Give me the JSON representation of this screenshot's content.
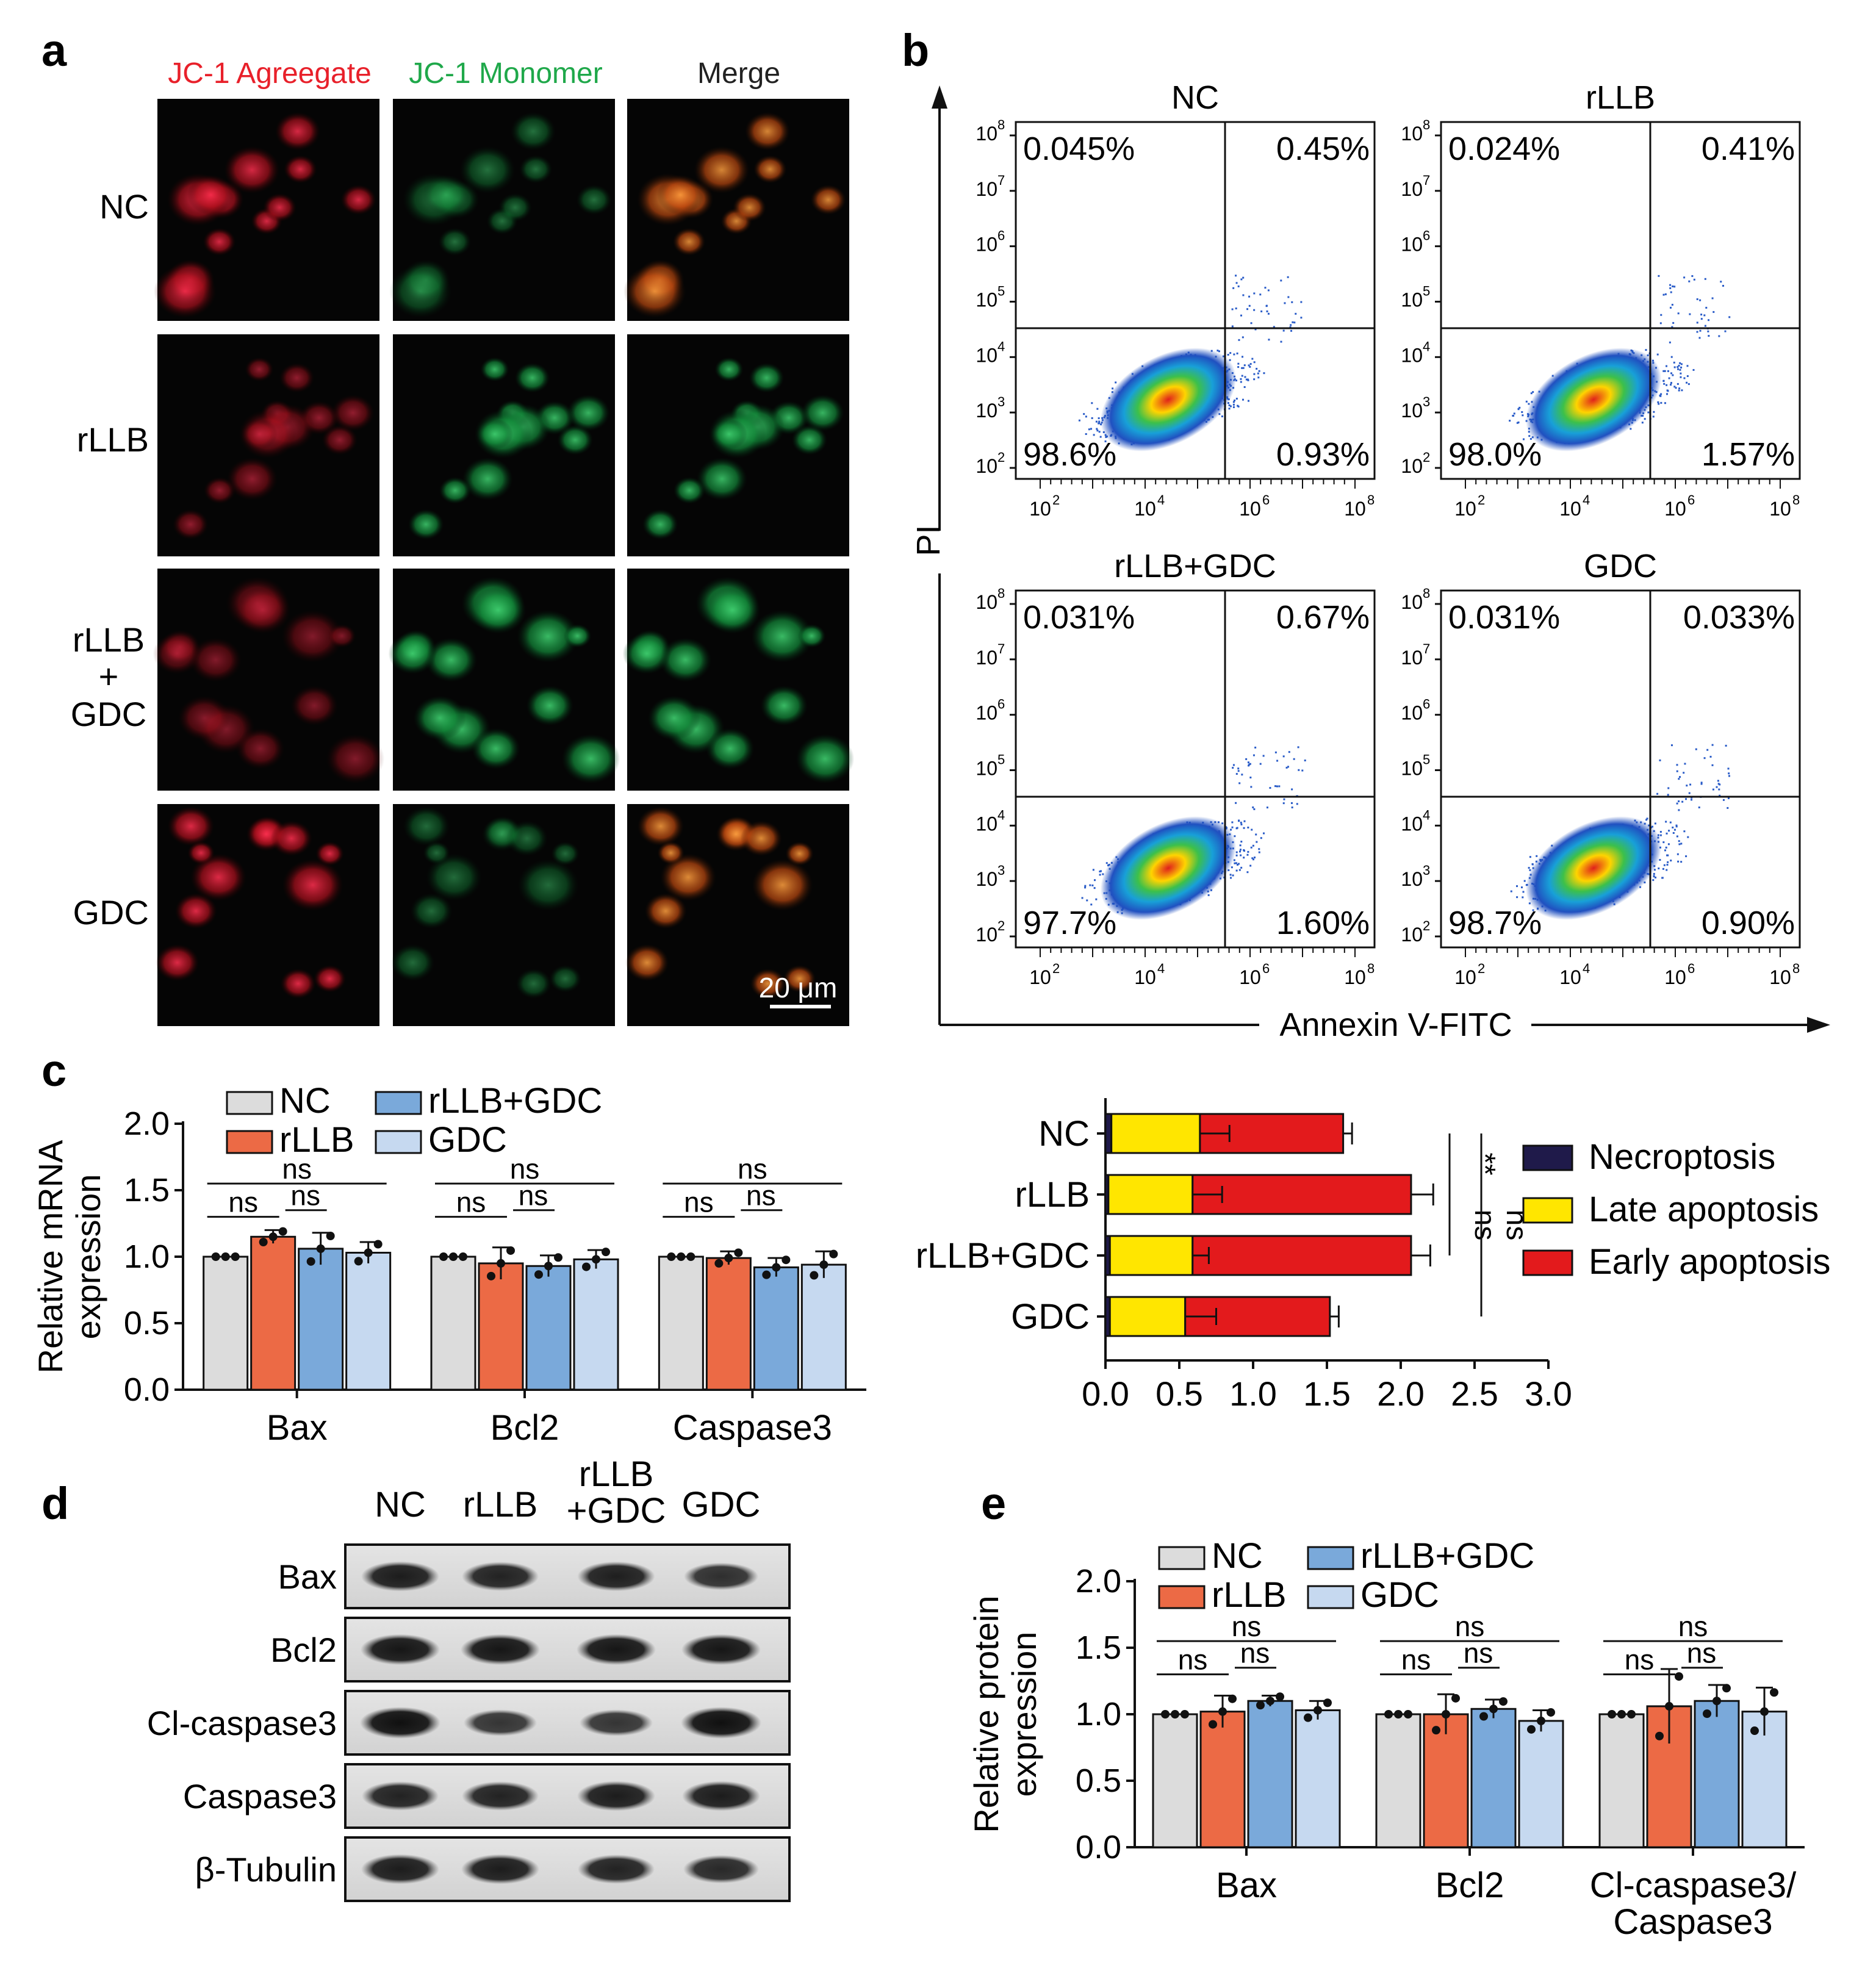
{
  "panels": {
    "a": {
      "label": "a",
      "columns": [
        "JC-1 Agreegate",
        "JC-1 Monomer",
        "Merge"
      ],
      "column_colors": [
        "#e8202a",
        "#1fa84a",
        "#222222"
      ],
      "rows": [
        {
          "label": "NC",
          "red_level": 0.8,
          "green_level": 0.3
        },
        {
          "label": "rLLB",
          "red_level": 0.35,
          "green_level": 0.85
        },
        {
          "label_lines": [
            "rLLB",
            "+",
            "GDC"
          ],
          "red_level": 0.25,
          "green_level": 0.9
        },
        {
          "label": "GDC",
          "red_level": 0.85,
          "green_level": 0.25
        }
      ],
      "scale_bar": "20 μm"
    },
    "b": {
      "label": "b",
      "y_axis_label": "PI",
      "x_axis_label": "Annexin V-FITC",
      "tick_labels": [
        "10",
        "10",
        "10",
        "10"
      ],
      "tick_exponents": [
        "2",
        "4",
        "6",
        "8"
      ],
      "y_tick_exponents": [
        "2",
        "3",
        "4",
        "5",
        "6",
        "7",
        "8"
      ],
      "plots": [
        {
          "title": "NC",
          "ul": "0.045%",
          "ur": "0.45%",
          "ll": "98.6%",
          "lr": "0.93%"
        },
        {
          "title": "rLLB",
          "ul": "0.024%",
          "ur": "0.41%",
          "ll": "98.0%",
          "lr": "1.57%"
        },
        {
          "title": "rLLB+GDC",
          "ul": "0.031%",
          "ur": "0.67%",
          "ll": "97.7%",
          "lr": "1.60%"
        },
        {
          "title": "GDC",
          "ul": "0.031%",
          "ur": "0.033%",
          "ll": "98.7%",
          "lr": "0.90%"
        }
      ]
    },
    "c": {
      "label": "c"
    },
    "d": {
      "label": "d",
      "lanes": [
        "NC",
        "rLLB",
        "rLLB\n+GDC",
        "GDC"
      ],
      "lane_lines": [
        [
          "NC"
        ],
        [
          "rLLB"
        ],
        [
          "rLLB",
          "+GDC"
        ],
        [
          "GDC"
        ]
      ],
      "blots": [
        {
          "name": "Bax",
          "intensity": [
            0.9,
            0.85,
            0.88,
            0.75
          ]
        },
        {
          "name": "Bcl2",
          "intensity": [
            0.95,
            0.95,
            0.95,
            0.95
          ]
        },
        {
          "name": "Cl-caspase3",
          "intensity": [
            1.0,
            0.7,
            0.7,
            1.0
          ]
        },
        {
          "name": "Caspase3",
          "intensity": [
            0.85,
            0.85,
            0.9,
            0.9
          ]
        },
        {
          "name": "β-Tubulin",
          "intensity": [
            0.9,
            0.9,
            0.85,
            0.8
          ]
        }
      ]
    },
    "e": {
      "label": "e"
    }
  },
  "colors": {
    "NC": "#dcdcdc",
    "rLLB": "#ec6a45",
    "rLLB+GDC": "#7aa9da",
    "GDC": "#c6d9f0",
    "early": "#e31a1c",
    "late": "#ffe600",
    "necroptosis": "#1f1a4a"
  },
  "chart_data": [
    {
      "id": "c-left",
      "type": "bar",
      "ylabel_lines": [
        "Relative mRNA",
        "expression"
      ],
      "ylim": [
        0,
        2.0
      ],
      "yticks": [
        "0.0",
        "0.5",
        "1.0",
        "1.5",
        "2.0"
      ],
      "categories": [
        "Bax",
        "Bcl2",
        "Caspase3"
      ],
      "legend": [
        "NC",
        "rLLB",
        "rLLB+GDC",
        "GDC"
      ],
      "series": [
        {
          "name": "NC",
          "values": [
            1.0,
            1.0,
            1.0
          ],
          "err": [
            0.0,
            0.0,
            0.0
          ]
        },
        {
          "name": "rLLB",
          "values": [
            1.15,
            0.95,
            0.99
          ],
          "err": [
            0.05,
            0.12,
            0.05
          ]
        },
        {
          "name": "rLLB+GDC",
          "values": [
            1.06,
            0.93,
            0.92
          ],
          "err": [
            0.12,
            0.08,
            0.07
          ]
        },
        {
          "name": "GDC",
          "values": [
            1.03,
            0.98,
            0.94
          ],
          "err": [
            0.08,
            0.07,
            0.1
          ]
        }
      ],
      "significance": [
        "ns",
        "ns",
        "ns"
      ]
    },
    {
      "id": "c-right",
      "type": "bar",
      "orientation": "horizontal",
      "stacked": true,
      "categories": [
        "NC",
        "rLLB",
        "rLLB+GDC",
        "GDC"
      ],
      "xlim": [
        0.0,
        3.0
      ],
      "xticks": [
        "0.0",
        "0.5",
        "1.0",
        "1.5",
        "2.0",
        "2.5",
        "3.0"
      ],
      "legend": [
        "Necroptosis",
        "Late apoptosis",
        "Early apoptosis"
      ],
      "series": [
        {
          "name": "Necroptosis",
          "values": [
            0.04,
            0.02,
            0.03,
            0.03
          ]
        },
        {
          "name": "Late apoptosis",
          "values": [
            0.6,
            0.57,
            0.56,
            0.51
          ]
        },
        {
          "name": "Early apoptosis",
          "values": [
            0.97,
            1.48,
            1.48,
            0.98
          ]
        }
      ],
      "late_err": [
        0.2,
        0.2,
        0.11,
        0.21
      ],
      "total_err": [
        0.06,
        0.15,
        0.13,
        0.06
      ],
      "significance": [
        "**",
        "ns",
        "ns"
      ]
    },
    {
      "id": "e",
      "type": "bar",
      "ylabel_lines": [
        "Relative protein",
        "expression"
      ],
      "ylim": [
        0,
        2.0
      ],
      "yticks": [
        "0.0",
        "0.5",
        "1.0",
        "1.5",
        "2.0"
      ],
      "categories": [
        "Bax",
        "Bcl2",
        "Cl-caspase3/\nCaspase3"
      ],
      "category_lines": [
        [
          "Bax"
        ],
        [
          "Bcl2"
        ],
        [
          "Cl-caspase3/",
          "Caspase3"
        ]
      ],
      "legend": [
        "NC",
        "rLLB",
        "rLLB+GDC",
        "GDC"
      ],
      "series": [
        {
          "name": "NC",
          "values": [
            1.0,
            1.0,
            1.0
          ],
          "err": [
            0.0,
            0.0,
            0.0
          ]
        },
        {
          "name": "rLLB",
          "values": [
            1.02,
            1.0,
            1.06
          ],
          "err": [
            0.12,
            0.15,
            0.28
          ]
        },
        {
          "name": "rLLB+GDC",
          "values": [
            1.1,
            1.04,
            1.1
          ],
          "err": [
            0.04,
            0.07,
            0.12
          ]
        },
        {
          "name": "GDC",
          "values": [
            1.03,
            0.95,
            1.02
          ],
          "err": [
            0.07,
            0.08,
            0.18
          ]
        }
      ],
      "significance": [
        "ns",
        "ns",
        "ns"
      ]
    }
  ]
}
